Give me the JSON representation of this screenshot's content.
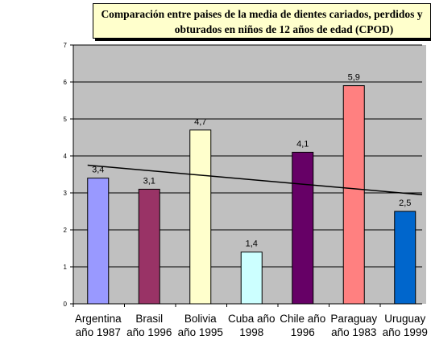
{
  "chart_data": {
    "type": "bar",
    "title": "Comparación entre paises de la media de dientes cariados, perdidos y obturados en niños de 12 años de edad (CPOD)",
    "title_lines": [
      "Comparación entre paises de la media de dientes cariados, perdidos y",
      "obturados en niños de 12 años de edad (CPOD)"
    ],
    "categories": [
      [
        "Argentina",
        "año 1987"
      ],
      [
        "Brasil",
        "año 1996"
      ],
      [
        "Bolivia",
        "año 1995"
      ],
      [
        "Cuba año",
        "1998"
      ],
      [
        "Chile año",
        "1996"
      ],
      [
        "Paraguay",
        "año 1983"
      ],
      [
        "Uruguay",
        "año 1999"
      ]
    ],
    "values": [
      3.4,
      3.1,
      4.7,
      1.4,
      4.1,
      5.9,
      2.5
    ],
    "value_labels": [
      "3,4",
      "3,1",
      "4,7",
      "1,4",
      "4,1",
      "5,9",
      "2,5"
    ],
    "bar_colors": [
      "#9999ff",
      "#993366",
      "#ffffcc",
      "#ccffff",
      "#660066",
      "#ff8080",
      "#0066cc"
    ],
    "ylim": [
      0,
      7
    ],
    "yticks": [
      "0",
      "1",
      "2",
      "3",
      "4",
      "5",
      "6",
      "7"
    ],
    "trendline": {
      "type": "linear",
      "start": 3.75,
      "end": 2.95
    },
    "grid": true,
    "plot_background": "#c0c0c0",
    "xlabel": "",
    "ylabel": ""
  }
}
